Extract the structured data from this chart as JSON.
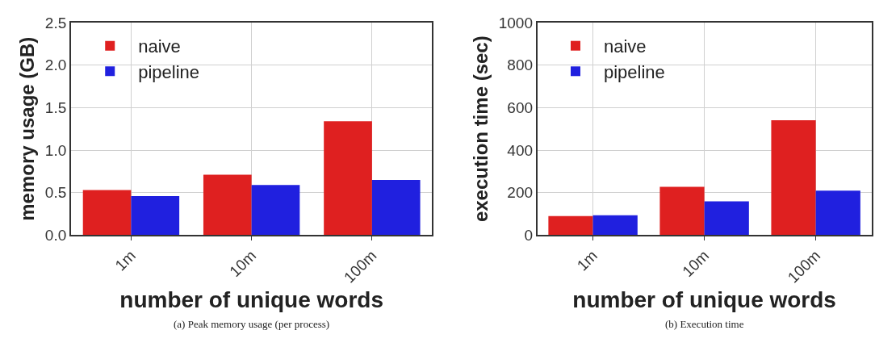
{
  "chart_data": [
    {
      "type": "bar",
      "categories": [
        "1m",
        "10m",
        "100m"
      ],
      "xlabel": "number of unique words",
      "ylabel": "memory usage (GB)",
      "ylim": [
        0,
        2.5
      ],
      "yticks": [
        {
          "value": 0,
          "label": "0.0"
        },
        {
          "value": 0.5,
          "label": "0.5"
        },
        {
          "value": 1,
          "label": "1.0"
        },
        {
          "value": 1.5,
          "label": "1.5"
        },
        {
          "value": 2,
          "label": "2.0"
        },
        {
          "value": 2.5,
          "label": "2.5"
        }
      ],
      "grid": true,
      "legend": "top left",
      "annotations": [
        "(a) Peak memory usage (per process)"
      ],
      "series": [
        {
          "name": "naive",
          "color": "#df2020",
          "values": [
            0.53,
            0.71,
            1.34
          ]
        },
        {
          "name": "pipeline",
          "color": "#2020df",
          "values": [
            0.46,
            0.59,
            0.65
          ]
        }
      ]
    },
    {
      "type": "bar",
      "categories": [
        "1m",
        "10m",
        "100m"
      ],
      "xlabel": "number of unique words",
      "ylabel": "execution time (sec)",
      "ylim": [
        0,
        1000
      ],
      "yticks": [
        0,
        200,
        400,
        600,
        800,
        1000
      ],
      "grid": true,
      "legend": "top left",
      "annotations": [
        "(b) Execution time"
      ],
      "series": [
        {
          "name": "naive",
          "color": "#df2020",
          "values": [
            90,
            227,
            541
          ]
        },
        {
          "name": "pipeline",
          "color": "#2020df",
          "values": [
            94,
            159,
            209
          ]
        }
      ]
    }
  ]
}
